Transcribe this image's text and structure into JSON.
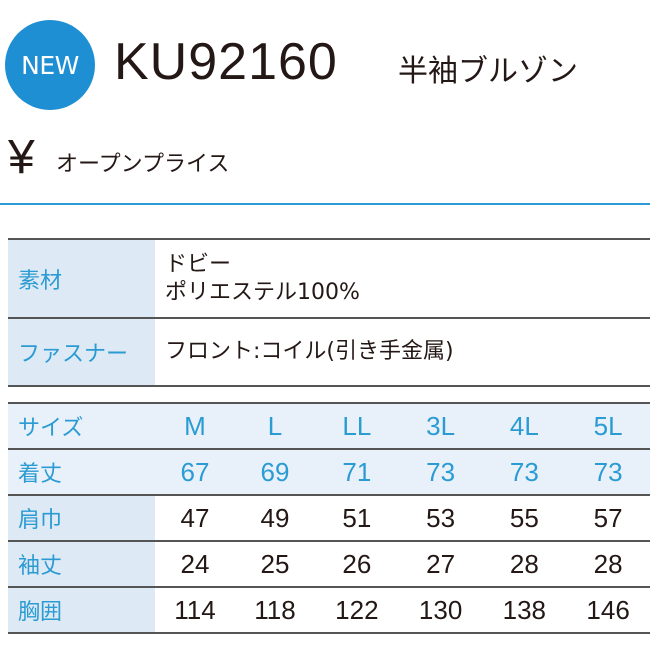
{
  "header": {
    "badge": "NEW",
    "model": "KU92160",
    "name": "半袖ブルゾン",
    "currency": "¥",
    "price": "オープンプライス"
  },
  "specs": [
    {
      "label": "素材",
      "lines": [
        "ドビー",
        "ポリエステル100%"
      ]
    },
    {
      "label": "ファスナー",
      "lines": [
        "フロント:コイル(引き手金属)"
      ]
    }
  ],
  "size_table": {
    "header": {
      "label": "サイズ",
      "sizes": [
        "M",
        "L",
        "LL",
        "3L",
        "4L",
        "5L"
      ]
    },
    "rows": [
      {
        "label": "着丈",
        "values": [
          "67",
          "69",
          "71",
          "73",
          "73",
          "73"
        ]
      },
      {
        "label": "肩巾",
        "values": [
          "47",
          "49",
          "51",
          "53",
          "55",
          "57"
        ]
      },
      {
        "label": "袖丈",
        "values": [
          "24",
          "25",
          "26",
          "27",
          "28",
          "28"
        ]
      },
      {
        "label": "胸囲",
        "values": [
          "114",
          "118",
          "122",
          "130",
          "138",
          "146"
        ]
      }
    ]
  },
  "colors": {
    "accent": "#1f8fd3",
    "label_bg": "#dde9f5"
  }
}
